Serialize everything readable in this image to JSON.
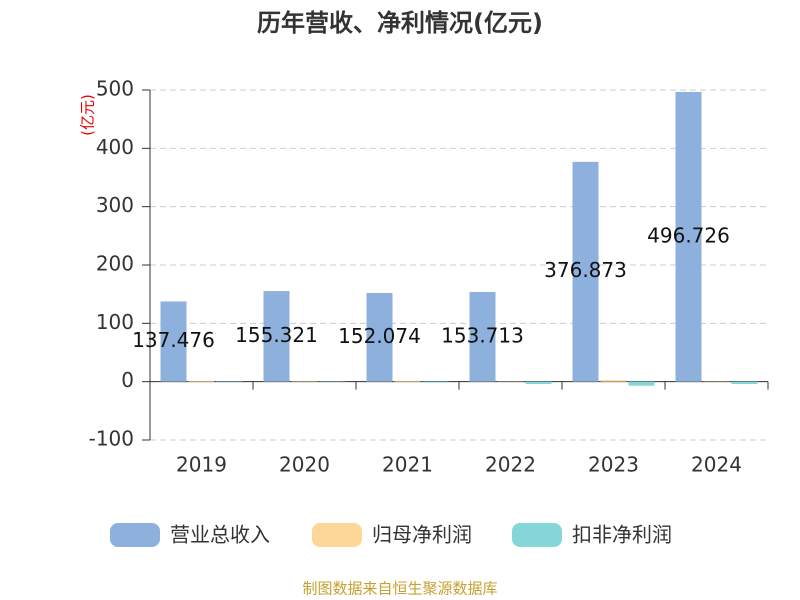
{
  "chart_data": {
    "type": "bar",
    "title": "历年营收、净利情况(亿元)",
    "y_label": "(亿元)",
    "categories": [
      "2019",
      "2020",
      "2021",
      "2022",
      "2023",
      "2024"
    ],
    "series": [
      {
        "name": "营业总收入",
        "color": "#8eb0dc",
        "values": [
          137.476,
          155.321,
          152.074,
          153.713,
          376.873,
          496.726
        ],
        "show_labels": true
      },
      {
        "name": "归母净利润",
        "color": "#fdd797",
        "values": [
          1.5,
          0.8,
          1.5,
          0.5,
          2.5,
          0.5
        ]
      },
      {
        "name": "扣非净利润",
        "color": "#84d6d8",
        "values": [
          -1,
          -0.5,
          -1.5,
          -4,
          -7,
          -4
        ]
      }
    ],
    "ylim": [
      -100,
      500
    ],
    "yticks": [
      -100,
      0,
      100,
      200,
      300,
      400,
      500
    ],
    "grid": true,
    "source": "制图数据来自恒生聚源数据库"
  }
}
